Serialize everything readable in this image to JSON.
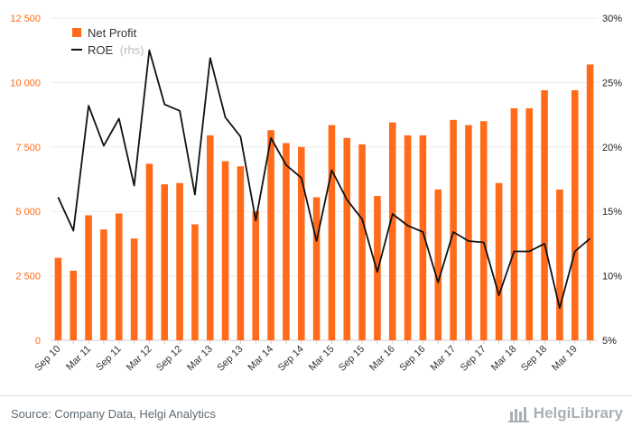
{
  "chart_data": {
    "type": "bar",
    "categories": [
      "Sep 10",
      "Dec 10",
      "Mar 11",
      "Jun 11",
      "Sep 11",
      "Dec 11",
      "Mar 12",
      "Jun 12",
      "Sep 12",
      "Dec 12",
      "Mar 13",
      "Jun 13",
      "Sep 13",
      "Dec 13",
      "Mar 14",
      "Jun 14",
      "Sep 14",
      "Dec 14",
      "Mar 15",
      "Jun 15",
      "Sep 15",
      "Dec 15",
      "Mar 16",
      "Jun 16",
      "Sep 16",
      "Dec 16",
      "Mar 17",
      "Jun 17",
      "Sep 17",
      "Dec 17",
      "Mar 18",
      "Jun 18",
      "Sep 18",
      "Dec 18",
      "Mar 19",
      "Jun 19"
    ],
    "tick_labels": [
      "Sep 10",
      "",
      "Mar 11",
      "",
      "Sep 11",
      "",
      "Mar 12",
      "",
      "Sep 12",
      "",
      "Mar 13",
      "",
      "Sep 13",
      "",
      "Mar 14",
      "",
      "Sep 14",
      "",
      "Mar 15",
      "",
      "Sep 15",
      "",
      "Mar 16",
      "",
      "Sep 16",
      "",
      "Mar 17",
      "",
      "Sep 17",
      "",
      "Mar 18",
      "",
      "Sep 18",
      "",
      "Mar 19",
      ""
    ],
    "series": [
      {
        "name": "Net Profit",
        "axis": "left",
        "type": "bar",
        "color": "#ff6b1a",
        "values": [
          3200,
          2700,
          4850,
          4300,
          4920,
          3950,
          6850,
          6050,
          6100,
          4500,
          7950,
          6950,
          6750,
          5000,
          8150,
          7650,
          7500,
          5550,
          8350,
          7850,
          7600,
          5600,
          8450,
          7950,
          7950,
          5850,
          8550,
          8350,
          8500,
          6100,
          9000,
          9000,
          9700,
          5850,
          9700,
          10700
        ]
      },
      {
        "name": "ROE",
        "name_suffix": "(rhs)",
        "axis": "right",
        "type": "line",
        "color": "#111111",
        "values": [
          16.1,
          13.5,
          23.2,
          20.1,
          22.2,
          17.0,
          27.5,
          23.3,
          22.8,
          16.3,
          26.9,
          22.3,
          20.8,
          14.3,
          20.7,
          18.6,
          17.6,
          12.7,
          18.2,
          15.9,
          14.4,
          10.3,
          14.8,
          13.9,
          13.4,
          9.5,
          13.4,
          12.7,
          12.6,
          8.5,
          11.9,
          11.9,
          12.5,
          7.5,
          11.9,
          12.9
        ]
      }
    ],
    "ylim_left": [
      0,
      12500
    ],
    "yticks_left": [
      "0",
      "2 500",
      "5 000",
      "7 500",
      "10 000",
      "12 500"
    ],
    "ylim_right": [
      5,
      30
    ],
    "yticks_right": [
      "5%",
      "10%",
      "15%",
      "20%",
      "25%",
      "30%"
    ],
    "legend_position": "top-left",
    "grid": true
  },
  "source": "Source: Company Data, Helgi Analytics",
  "brand": "HelgiLibrary"
}
